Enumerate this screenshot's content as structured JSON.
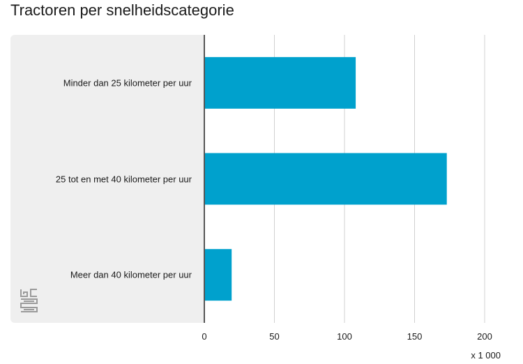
{
  "title": "Tractoren per snelheidscategorie",
  "logo_icon": "cbs-logo-icon",
  "chart_data": {
    "type": "bar",
    "orientation": "horizontal",
    "categories": [
      "Minder dan 25 kilometer per uur",
      "25 tot en met 40 kilometer per uur",
      "Meer dan 40 kilometer per uur"
    ],
    "values": [
      108,
      173,
      19.5
    ],
    "xlim": [
      0,
      200
    ],
    "xticks": [
      "0",
      "50",
      "100",
      "150",
      "200"
    ],
    "unit_label": "x 1 000",
    "grid": true,
    "bar_color": "#00a1cd"
  }
}
